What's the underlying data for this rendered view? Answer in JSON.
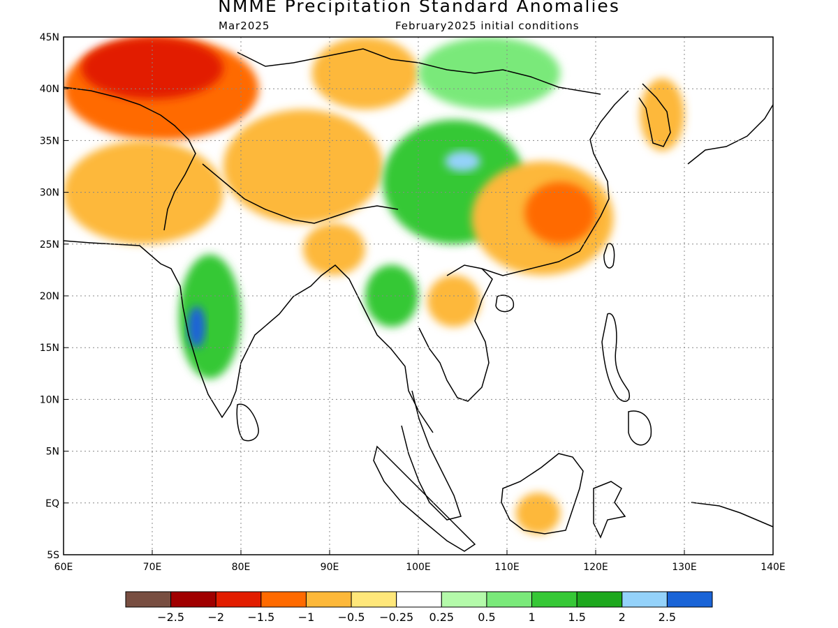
{
  "header": {
    "title": "NMME Precipitation Standard Anomalies",
    "subtitle_left": "Mar2025",
    "subtitle_right": "February2025 initial conditions"
  },
  "map": {
    "lon_range": [
      60,
      140
    ],
    "lat_range": [
      -5,
      45
    ],
    "x_ticks": [
      "60E",
      "70E",
      "80E",
      "90E",
      "100E",
      "110E",
      "120E",
      "130E",
      "140E"
    ],
    "y_ticks": [
      "45N",
      "40N",
      "35N",
      "30N",
      "25N",
      "20N",
      "15N",
      "10N",
      "5N",
      "EQ",
      "5S"
    ],
    "grid": "dotted",
    "regions": [
      {
        "label": "western-interior-dry",
        "lon": [
          60,
          82
        ],
        "lat": [
          35,
          45
        ],
        "class": "-1.5 to -1",
        "color": "#ff6a00"
      },
      {
        "label": "kazakh-strong-dry",
        "lon": [
          62,
          78
        ],
        "lat": [
          39,
          45
        ],
        "class": "-2 to -1.5",
        "color": "#e21d00"
      },
      {
        "label": "pakistan-afghanistan-dry",
        "lon": [
          60,
          78
        ],
        "lat": [
          25,
          35
        ],
        "class": "-1 to -0.5",
        "color": "#fdb83a"
      },
      {
        "label": "tibet-plateau-dry",
        "lon": [
          78,
          96
        ],
        "lat": [
          27,
          38
        ],
        "class": "-1 to -0.5",
        "color": "#fdb83a"
      },
      {
        "label": "tarim-dry",
        "lon": [
          88,
          100
        ],
        "lat": [
          38,
          45
        ],
        "class": "-1 to -0.5",
        "color": "#fdb83a"
      },
      {
        "label": "sichuan-wet",
        "lon": [
          96,
          112
        ],
        "lat": [
          25,
          37
        ],
        "class": "1 to 1.5",
        "color": "#36c836"
      },
      {
        "label": "sichuan-core",
        "lon": [
          103,
          107
        ],
        "lat": [
          32,
          34
        ],
        "class": "2 to 2.5",
        "color": "#94d2fa"
      },
      {
        "label": "mongolia-wet",
        "lon": [
          100,
          116
        ],
        "lat": [
          38,
          45
        ],
        "class": "0.5 to 1",
        "color": "#7ae97a"
      },
      {
        "label": "southeast-china-dry",
        "lon": [
          106,
          122
        ],
        "lat": [
          22,
          33
        ],
        "class": "-1 to -0.5",
        "color": "#fdb83a"
      },
      {
        "label": "southeast-china-strong-dry",
        "lon": [
          112,
          120
        ],
        "lat": [
          25,
          31
        ],
        "class": "-1.5 to -1",
        "color": "#ff6a00"
      },
      {
        "label": "western-india-wet",
        "lon": [
          73,
          80
        ],
        "lat": [
          12,
          24
        ],
        "class": "1 to 1.5",
        "color": "#36c836"
      },
      {
        "label": "konkan-core",
        "lon": [
          74,
          76
        ],
        "lat": [
          15,
          19
        ],
        "class": ">2.5",
        "color": "#1a64d7"
      },
      {
        "label": "myanmar-wet",
        "lon": [
          94,
          100
        ],
        "lat": [
          17,
          23
        ],
        "class": "1 to 1.5",
        "color": "#36c836"
      },
      {
        "label": "bangladesh-dry",
        "lon": [
          87,
          94
        ],
        "lat": [
          22,
          27
        ],
        "class": "-1 to -0.5",
        "color": "#fdb83a"
      },
      {
        "label": "laos-dry",
        "lon": [
          101,
          107
        ],
        "lat": [
          17,
          22
        ],
        "class": "-1 to -0.5",
        "color": "#fdb83a"
      },
      {
        "label": "borneo-dry",
        "lon": [
          111,
          116
        ],
        "lat": [
          -3,
          1
        ],
        "class": "-1 to -0.5",
        "color": "#fdb83a"
      },
      {
        "label": "korea-dry",
        "lon": [
          125,
          130
        ],
        "lat": [
          34,
          41
        ],
        "class": "-1 to -0.5",
        "color": "#fdb83a"
      }
    ]
  },
  "colorbar": {
    "labels": [
      "-2.5",
      "-2",
      "-1.5",
      "-1",
      "-0.5",
      "-0.25",
      "0.25",
      "0.5",
      "1",
      "1.5",
      "2",
      "2.5"
    ],
    "colors": [
      "#784e41",
      "#a00000",
      "#e21d00",
      "#ff6a00",
      "#fdb83a",
      "#ffe77a",
      "#ffffff",
      "#b4faaa",
      "#7ae97a",
      "#36c836",
      "#1ea81e",
      "#94d2fa",
      "#1a64d7"
    ]
  }
}
